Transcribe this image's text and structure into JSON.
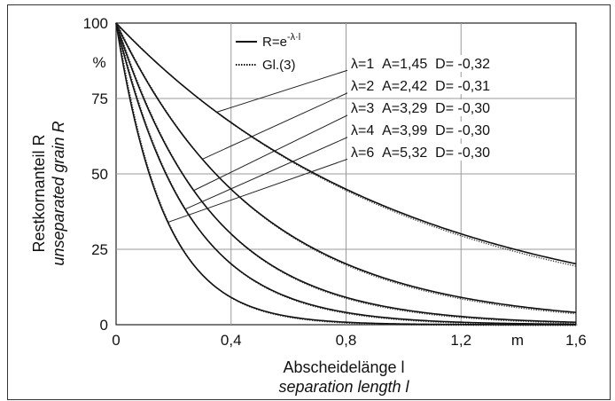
{
  "chart_data": {
    "type": "line",
    "xlim": [
      0,
      1.6
    ],
    "ylim": [
      0,
      100
    ],
    "x_ticks": [
      "0",
      "0,4",
      "0,8",
      "1,2",
      "1,6"
    ],
    "x_unit": "m",
    "y_ticks": [
      "0",
      "25",
      "50",
      "75",
      "100"
    ],
    "y_unit": "%",
    "xlabel": "Abscheidelänge l",
    "xlabel_sub": "separation length l",
    "ylabel": "Restkornanteil  R",
    "ylabel_sub": "unseparated grain R",
    "grid": true,
    "legend": {
      "placement": "top-center",
      "entries": [
        {
          "label": "R=e",
          "exp": "-λ·l",
          "style": "solid"
        },
        {
          "label": "Gl.(3)",
          "style": "dotted"
        }
      ]
    },
    "series": [
      {
        "lambda": 1,
        "label": "λ=1  A=1,45  D= -0,32",
        "A": 1.45,
        "D": -0.32
      },
      {
        "lambda": 2,
        "label": "λ=2  A=2,42  D= -0,31",
        "A": 2.42,
        "D": -0.31
      },
      {
        "lambda": 3,
        "label": "λ=3  A=3,29  D= -0,30",
        "A": 3.29,
        "D": -0.3
      },
      {
        "lambda": 4,
        "label": "λ=4  A=3,99  D= -0,30",
        "A": 3.99,
        "D": -0.3
      },
      {
        "lambda": 6,
        "label": "λ=6  A=5,32  D= -0,30",
        "A": 5.32,
        "D": -0.3
      }
    ]
  }
}
